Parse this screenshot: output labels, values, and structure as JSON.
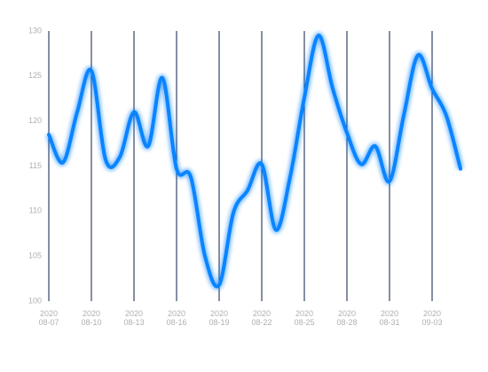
{
  "chart_data": {
    "type": "line",
    "color": "#0a84ff",
    "line_color_grid": "#0b1f4a",
    "categories": [
      "2020\n08-07",
      null,
      null,
      "2020\n08-10",
      null,
      null,
      "2020\n08-13",
      null,
      null,
      "2020\n08-16",
      null,
      null,
      "2020\n08-19",
      null,
      null,
      "2020\n08-22",
      null,
      null,
      "2020\n08-25",
      null,
      null,
      "2020\n08-28",
      null,
      null,
      "2020\n08-31",
      null,
      null,
      "2020\n09-03",
      null,
      null
    ],
    "values": [
      118.5,
      115.4,
      121,
      125.6,
      115.7,
      116,
      121,
      117.2,
      124.8,
      114.7,
      113.8,
      105,
      101.8,
      109.8,
      112.3,
      115.2,
      107.9,
      113.8,
      122.6,
      129.5,
      123.6,
      118.7,
      115.2,
      117.2,
      113.3,
      120.6,
      127.3,
      123.6,
      120.6,
      114.7
    ],
    "ylim": [
      100,
      130
    ],
    "yticks": [
      100,
      105,
      110,
      115,
      120,
      125,
      130
    ],
    "grid": true
  }
}
